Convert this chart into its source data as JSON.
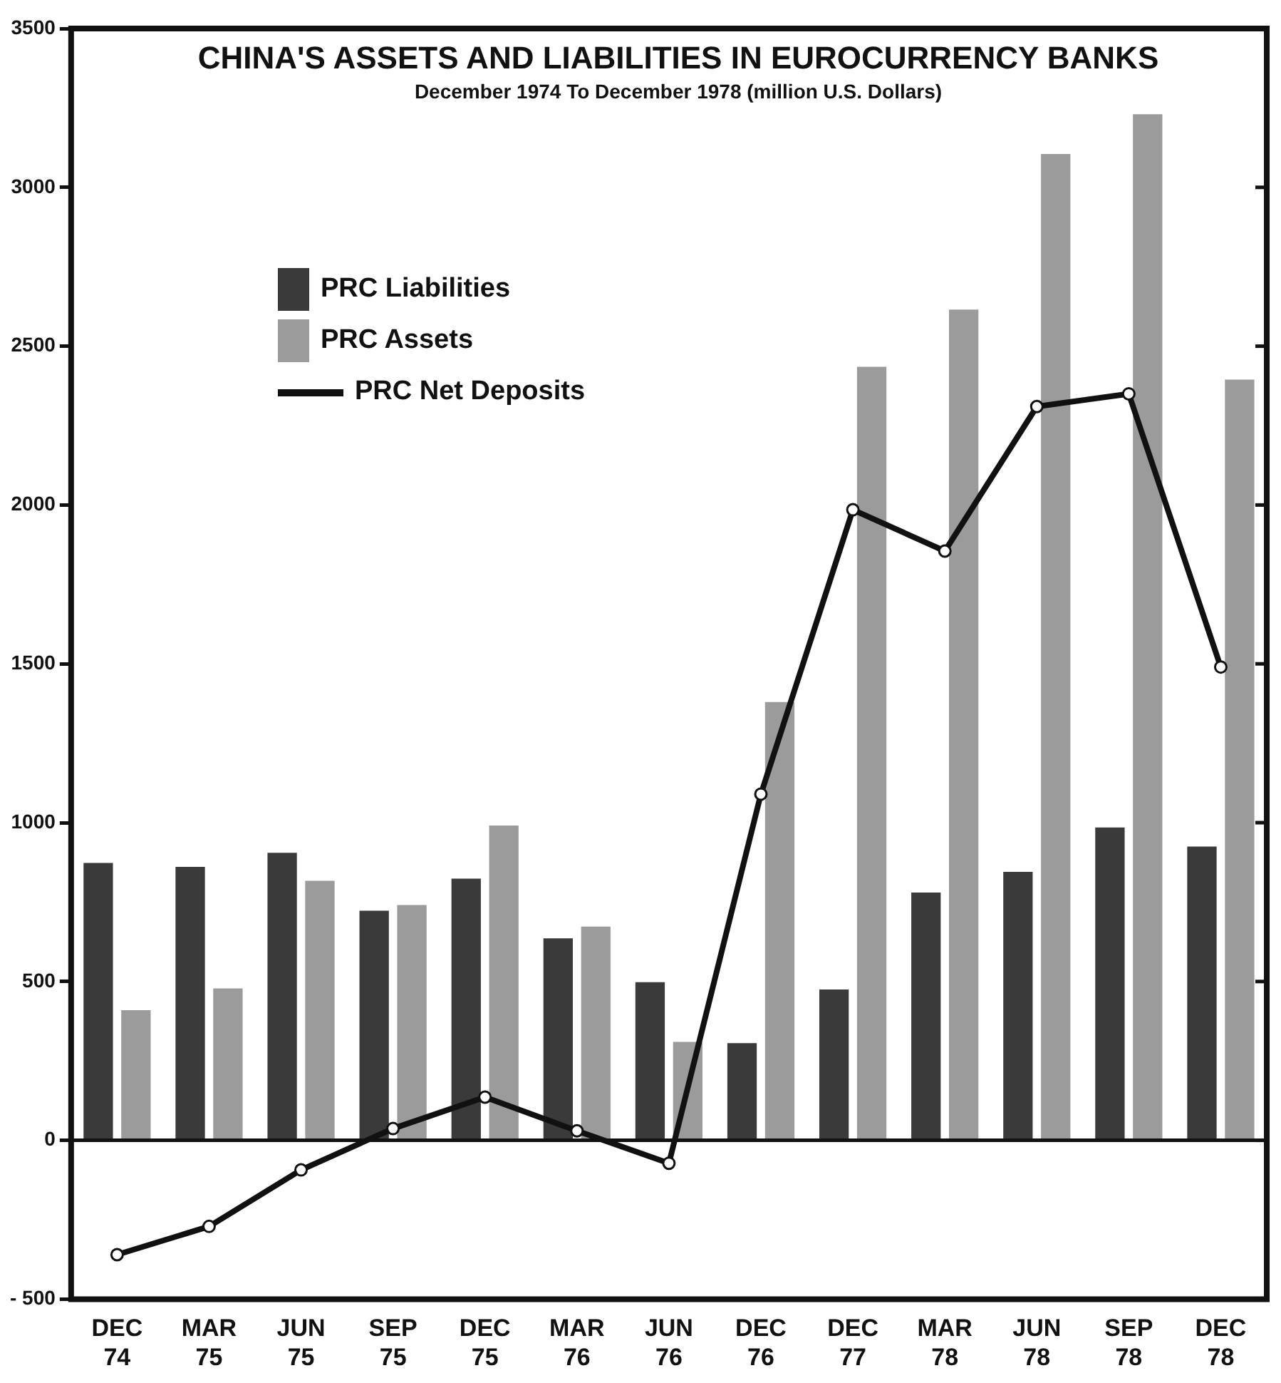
{
  "chart_data": {
    "type": "bar",
    "title": "CHINA'S ASSETS AND LIABILITIES IN EUROCURRENCY BANKS",
    "subtitle": "December 1974 To December 1978 (million U.S. Dollars)",
    "categories": [
      "DEC 74",
      "MAR 75",
      "JUN 75",
      "SEP 75",
      "DEC 75",
      "MAR 76",
      "JUN 76",
      "DEC 76",
      "DEC 77",
      "MAR 78",
      "JUN 78",
      "SEP 78",
      "DEC 78"
    ],
    "series": [
      {
        "name": "PRC Liabilities",
        "color": "#3a3a3a",
        "values": [
          873,
          861,
          905,
          723,
          824,
          636,
          498,
          306,
          475,
          780,
          845,
          985,
          925
        ]
      },
      {
        "name": "PRC Assets",
        "color": "#9b9b9b",
        "values": [
          410,
          478,
          817,
          741,
          991,
          673,
          310,
          1380,
          2435,
          2615,
          3105,
          3230,
          2395
        ]
      },
      {
        "name": "PRC Net Deposits",
        "type": "line",
        "color": "#111111",
        "values": [
          -360,
          -271,
          -93,
          37,
          136,
          30,
          -72,
          1090,
          1985,
          1855,
          2310,
          2350,
          1490
        ]
      }
    ],
    "ylim": [
      -500,
      3500
    ],
    "yticks": [
      {
        "value": -500,
        "label": "- 500"
      },
      0,
      500,
      1000,
      1500,
      2000,
      2500,
      3000,
      3500
    ],
    "ref_lines": [
      {
        "axis": "y",
        "value": 0
      }
    ],
    "grid": false,
    "legend": "top left",
    "marker": "circle",
    "line_style": "solid"
  }
}
